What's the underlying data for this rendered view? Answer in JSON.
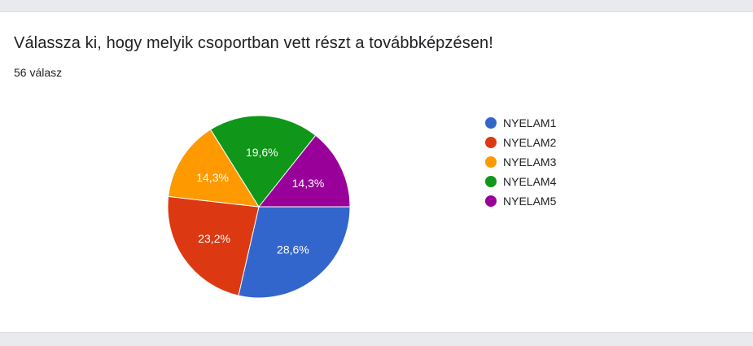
{
  "question": {
    "title": "Válassza ki, hogy melyik csoportban vett részt a továbbképzésen!",
    "response_count": "56 válasz"
  },
  "chart_data": {
    "type": "pie",
    "categories": [
      "NYELAM1",
      "NYELAM2",
      "NYELAM3",
      "NYELAM4",
      "NYELAM5"
    ],
    "values": [
      28.6,
      23.2,
      14.3,
      19.6,
      14.3
    ],
    "value_labels": [
      "28,6%",
      "23,2%",
      "14,3%",
      "19,6%",
      "14,3%"
    ],
    "colors": [
      "#3366cc",
      "#dc3912",
      "#ff9900",
      "#109618",
      "#990099"
    ],
    "slice_order": [
      0,
      1,
      2,
      3,
      4
    ],
    "legend_placement": "right",
    "legend_order": [
      0,
      1,
      2,
      3,
      4
    ]
  }
}
